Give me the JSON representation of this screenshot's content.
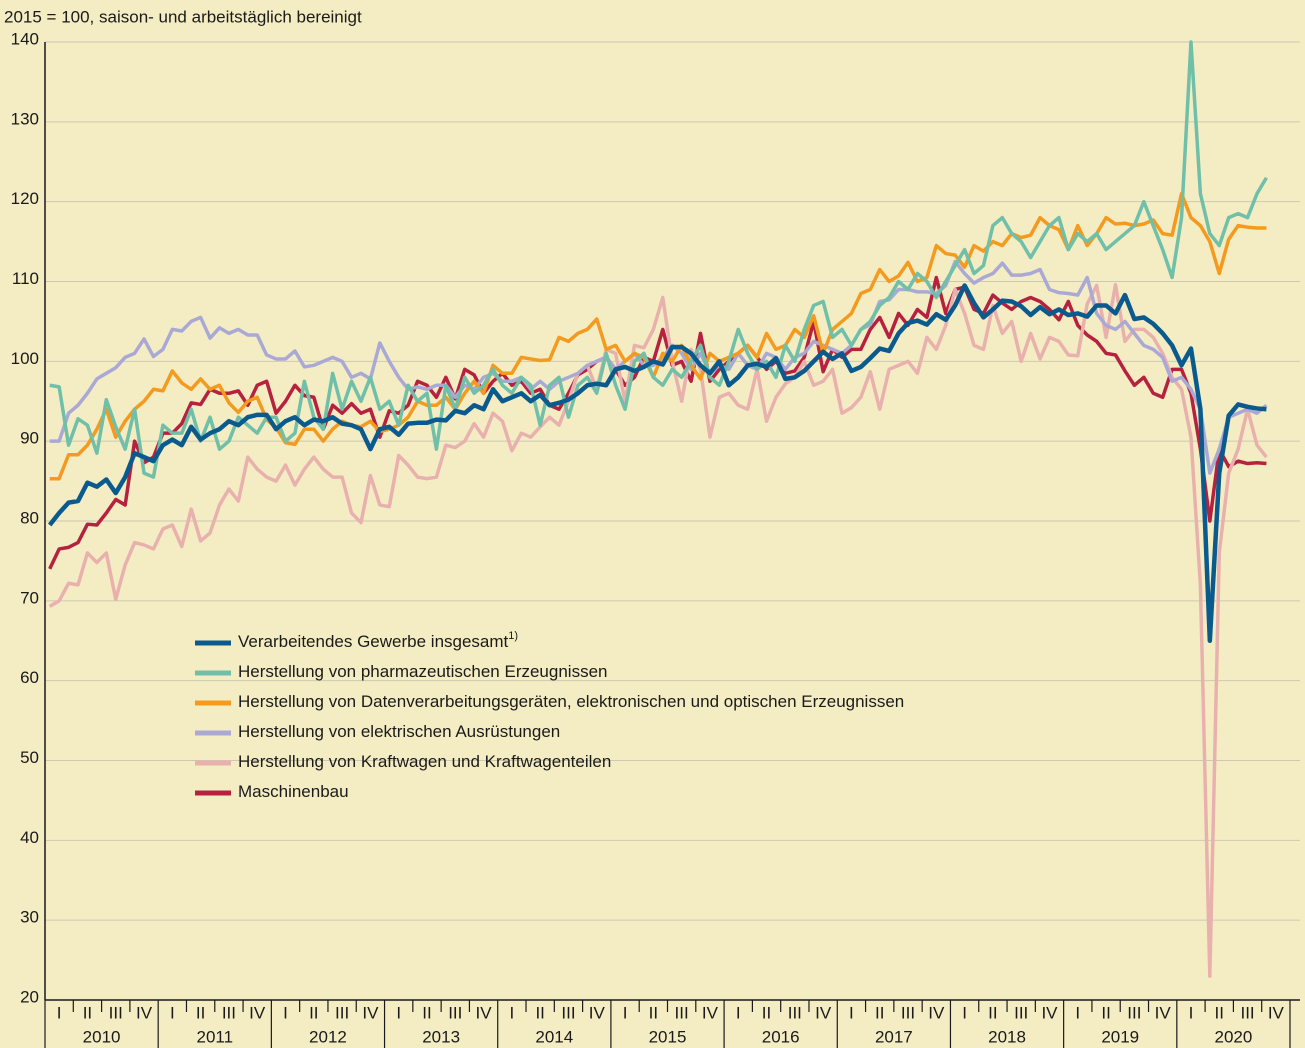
{
  "chart_data": {
    "type": "line",
    "subtitle": "2015 = 100, saison- und arbeitstäglich bereinigt",
    "ylim": [
      20,
      140
    ],
    "yticks": [
      20,
      30,
      40,
      50,
      60,
      70,
      80,
      90,
      100,
      110,
      120,
      130,
      140
    ],
    "grid": true,
    "years": [
      2010,
      2011,
      2012,
      2013,
      2014,
      2015,
      2016,
      2017,
      2018,
      2019,
      2020
    ],
    "quarters": [
      "I",
      "II",
      "III",
      "IV"
    ],
    "footnote": "1)",
    "legend": "upper left",
    "series": [
      {
        "name": "Verarbeitendes Gewerbe insgesamt",
        "color": "#0b5a8e",
        "values": [
          79.5,
          81,
          82.3,
          82.5,
          84.8,
          84.3,
          85.2,
          83.5,
          85.5,
          88.5,
          88,
          87.5,
          89.5,
          90.2,
          89.5,
          91.8,
          90.2,
          91,
          91.5,
          92.5,
          92,
          93,
          93.3,
          93.3,
          91.5,
          92.5,
          93,
          92,
          92.7,
          92.5,
          93,
          92.2,
          92,
          91.5,
          89,
          91.5,
          91.8,
          90.8,
          92.2,
          92.3,
          92.3,
          92.7,
          92.6,
          93.8,
          93.5,
          94.5,
          94,
          96.5,
          95,
          95.5,
          96,
          95,
          95.8,
          94.5,
          94.8,
          95.2,
          96,
          97,
          97.2,
          97,
          99,
          99.3,
          98.8,
          99.3,
          100,
          99.6,
          101.8,
          101.8,
          101,
          99.5,
          98.5,
          100,
          97,
          98,
          99.5,
          99.7,
          99.3,
          100.4,
          97.8,
          98,
          98.8,
          100,
          101.2,
          100.3,
          101,
          98.8,
          99.3,
          100.4,
          101.6,
          101.3,
          103.5,
          104.8,
          105.1,
          104.6,
          105.9,
          105.2,
          107,
          109.5,
          107.3,
          105.5,
          106.5,
          107.6,
          107.5,
          106.9,
          105.8,
          106.8,
          105.9,
          106.5,
          105.8,
          106,
          105.6,
          107,
          107,
          106,
          108.3,
          105.3,
          105.5,
          104.7,
          103.5,
          102,
          99.5,
          101.6,
          94,
          65,
          86,
          93.2,
          94.6,
          94.3,
          94.1,
          94
        ]
      },
      {
        "name": "Herstellung von pharmazeutischen Erzeugnissen",
        "color": "#6fbfa9",
        "values": [
          97,
          96.8,
          89.5,
          92.8,
          92,
          88.5,
          95.2,
          91.8,
          89,
          94,
          86,
          85.5,
          92,
          91,
          91,
          94,
          90,
          93,
          89,
          90,
          93,
          92,
          91,
          93,
          93,
          90,
          91,
          97.5,
          93,
          91.5,
          98.5,
          94,
          97.5,
          95,
          98,
          94,
          95,
          92,
          97,
          95,
          96,
          89,
          97,
          94,
          98,
          96,
          97,
          99,
          97,
          96,
          98,
          97,
          92,
          97,
          98,
          93,
          97,
          98,
          96,
          101,
          97,
          94,
          100,
          101,
          98,
          97,
          99,
          98,
          100,
          102,
          98,
          97,
          100,
          104,
          101,
          99,
          100,
          98,
          102,
          100,
          104,
          107,
          107.5,
          103,
          104,
          102,
          104,
          105,
          107,
          108,
          110,
          109,
          111,
          110,
          108,
          110,
          112,
          114,
          111,
          112,
          117,
          118,
          116,
          115,
          113,
          115,
          117,
          118,
          114,
          116,
          115,
          116,
          114,
          115,
          116,
          117,
          120,
          117,
          114,
          110.5,
          118,
          140,
          121,
          116,
          114.5,
          118,
          118.5,
          118,
          121,
          123
        ]
      },
      {
        "name": "Herstellung von Datenverarbeitungsgeräten, elektronischen und optischen Erzeugnissen",
        "color": "#f39a1f",
        "values": [
          85.3,
          85.3,
          88.3,
          88.3,
          89.5,
          91.5,
          94,
          90.5,
          92.5,
          94,
          95,
          96.5,
          96.3,
          98.8,
          97.3,
          96.5,
          97.8,
          96.5,
          97,
          94.8,
          93.6,
          95,
          95.5,
          92.7,
          91.7,
          89.8,
          89.6,
          91.5,
          91.5,
          90,
          91.5,
          92.5,
          92,
          91.8,
          92.5,
          91.2,
          91.5,
          92,
          93,
          95,
          94.5,
          94.5,
          95.5,
          94,
          96,
          97.5,
          96,
          99.5,
          98.5,
          98.5,
          100.5,
          100.3,
          100.1,
          100.2,
          103,
          102.5,
          103.5,
          104,
          105.3,
          101.5,
          102,
          100,
          101,
          100.5,
          98,
          101,
          100,
          102,
          99.5,
          97.8,
          101,
          100,
          100.5,
          101,
          102,
          100.5,
          103.5,
          101.5,
          102,
          104,
          103,
          105.7,
          101,
          104,
          105,
          106,
          108.5,
          109,
          111.5,
          110,
          110.7,
          112.4,
          110,
          110.5,
          114.5,
          113.5,
          113.3,
          111.8,
          114.5,
          113.8,
          115,
          114.5,
          116,
          115.5,
          115.8,
          118,
          117,
          116.5,
          114,
          117,
          114.5,
          116,
          118,
          117.2,
          117.3,
          117,
          117.2,
          117.7,
          116,
          115.8,
          121,
          118,
          117,
          115,
          111,
          115.3,
          117,
          116.8,
          116.7,
          116.7
        ]
      },
      {
        "name": "Herstellung von elektrischen Ausrüstungen",
        "color": "#aaa9d5",
        "values": [
          90,
          90,
          93.5,
          94.5,
          96,
          97.8,
          98.5,
          99.2,
          100.5,
          101,
          102.8,
          100.6,
          101.5,
          104,
          103.8,
          105,
          105.5,
          102.9,
          104.2,
          103.5,
          104,
          103.3,
          103.3,
          100.8,
          100.3,
          100.3,
          101.3,
          99.3,
          99.5,
          100,
          100.5,
          100,
          98,
          98.5,
          97.8,
          102.3,
          100,
          98,
          96.5,
          96.8,
          96.5,
          97,
          97,
          95.5,
          97,
          96.5,
          98,
          98.5,
          97.5,
          97.5,
          98,
          96.5,
          97.5,
          96.5,
          97.5,
          98,
          98.5,
          99.5,
          100,
          100.5,
          99,
          100,
          101,
          99.5,
          99.5,
          100.5,
          102,
          101,
          99,
          101,
          98.5,
          99.5,
          99,
          101,
          99.5,
          99,
          101,
          100.5,
          99,
          100.5,
          101,
          102.5,
          102,
          101.5,
          101,
          102,
          104,
          104.6,
          107.5,
          107.7,
          109,
          109,
          108.7,
          108.7,
          108.5,
          109.5,
          112.5,
          111,
          109.8,
          110.5,
          111,
          112.3,
          110.8,
          110.8,
          111,
          111.5,
          109,
          108.6,
          108.5,
          108.3,
          110.5,
          106,
          104.5,
          104,
          105,
          103.5,
          102,
          101.5,
          100.5,
          97.5,
          98,
          96.5,
          94,
          86,
          89,
          93,
          93.5,
          94,
          93.5,
          94.5
        ]
      },
      {
        "name": "Herstellung von Kraftwagen und Kraftwagenteilen",
        "color": "#e9b1ae",
        "values": [
          69.3,
          70,
          72.2,
          72,
          76,
          74.8,
          76,
          70.2,
          74.5,
          77.3,
          77,
          76.5,
          79,
          79.5,
          76.8,
          81.5,
          77.5,
          78.5,
          82,
          84,
          82.5,
          88,
          86.5,
          85.5,
          85,
          87,
          84.5,
          86.5,
          88,
          86.5,
          85.5,
          85.5,
          81,
          79.8,
          85.7,
          82,
          81.8,
          88.2,
          87,
          85.5,
          85.3,
          85.5,
          89.5,
          89.2,
          90,
          92.2,
          90.5,
          93.5,
          92.5,
          88.8,
          91,
          90.5,
          91.8,
          93,
          92,
          95,
          98.5,
          99.5,
          96.5,
          101.5,
          101,
          95,
          102,
          101.7,
          104,
          108,
          100,
          95,
          101.5,
          99,
          90.5,
          95.5,
          96,
          94.5,
          94,
          99,
          92.5,
          95.5,
          97.2,
          98,
          100,
          97,
          97.5,
          99,
          93.5,
          94.2,
          95.5,
          98.7,
          94,
          99,
          99.5,
          100,
          98.5,
          103,
          101.5,
          104.5,
          109,
          106,
          102,
          101.5,
          107,
          103.5,
          105,
          100,
          103.5,
          100.3,
          103,
          102.5,
          100.8,
          100.7,
          107.2,
          109.5,
          103,
          109.6,
          102.5,
          104,
          104,
          103,
          101,
          98,
          96.5,
          90.5,
          72,
          23,
          76,
          86,
          89,
          94,
          89.5,
          88
        ]
      },
      {
        "name": "Maschinenbau",
        "color": "#b6213f",
        "values": [
          74,
          76.5,
          76.7,
          77.3,
          79.6,
          79.5,
          81,
          82.7,
          82,
          90,
          87.3,
          88,
          91,
          91,
          92.2,
          94.8,
          94.6,
          96.5,
          96,
          96,
          96.3,
          94.5,
          97,
          97.5,
          93.5,
          95,
          97,
          95.7,
          95.5,
          91.5,
          94.5,
          93.5,
          94.7,
          93.5,
          94,
          90.5,
          93.8,
          93.5,
          94.5,
          97.5,
          97,
          95.5,
          98,
          95.3,
          99,
          98.3,
          96,
          97.5,
          98.5,
          97,
          97.5,
          96,
          96.5,
          94.5,
          94,
          96,
          98.3,
          99,
          100,
          100.5,
          99,
          97,
          98,
          100.5,
          100,
          104,
          99.5,
          100,
          97.5,
          103.5,
          97.5,
          99,
          100,
          101,
          102,
          100.5,
          99,
          100,
          98.5,
          98.8,
          100.5,
          105,
          98.7,
          101.5,
          100.5,
          101.5,
          101.5,
          104,
          105.5,
          103,
          106,
          104.5,
          106.5,
          105.5,
          110.5,
          106,
          109,
          109.3,
          106.5,
          106,
          108.3,
          107.3,
          106.5,
          107.5,
          108,
          107.5,
          106.5,
          105.2,
          107.5,
          104.5,
          103.3,
          102.5,
          101,
          100.8,
          98.8,
          97,
          98,
          96,
          95.5,
          99,
          99,
          96,
          89,
          80,
          89,
          86.8,
          87.5,
          87.2,
          87.3,
          87.2
        ]
      }
    ]
  }
}
